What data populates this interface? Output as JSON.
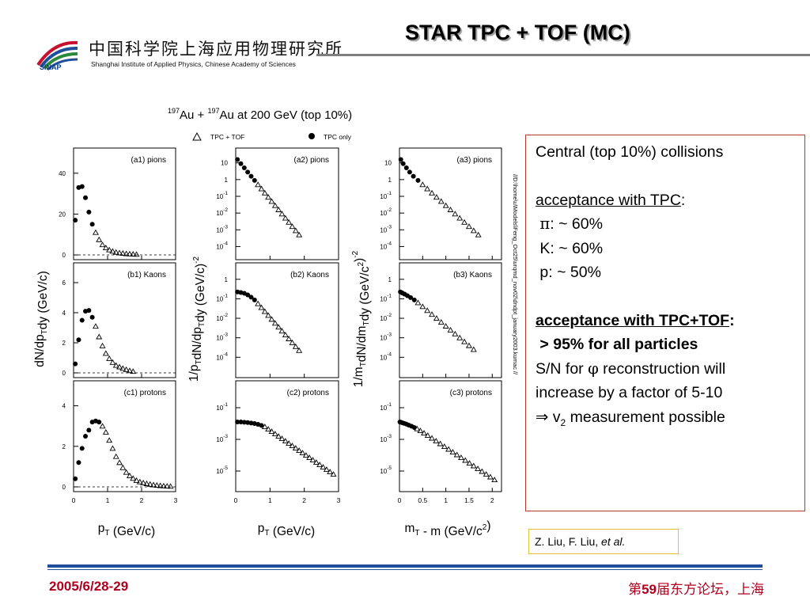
{
  "header": {
    "org_cn": "中国科学院上海应用物理研究所",
    "org_en": "Shanghai Institute of Applied Physics, Chinese Academy of Sciences",
    "logo_text": "SINAP",
    "title": "STAR TPC + TOF (MC)"
  },
  "info": {
    "l1": "Central (top 10%) collisions",
    "l2": "acceptance with TPC",
    "l2colon": ":",
    "l3sym": "π",
    "l3": ": ~ 60%",
    "l4": "K: ~ 60%",
    "l5": "p: ~ 50%",
    "l6": "acceptance with TPC+TOF",
    "l6colon": ":",
    "l7": "> 95% for all particles",
    "l8pre": "S/N for ",
    "l8sym": "φ",
    "l8post": " reconstruction will",
    "l9": "increase by a factor of 5-10",
    "l10sym": "⇒",
    "l10a": " v",
    "l10sub": "2",
    "l10b": " measurement possible"
  },
  "credit": {
    "authors": "Z. Liu, F. Liu, ",
    "etal": "et al."
  },
  "footer": {
    "date": "2005/6/28-29",
    "conf_pre": "第",
    "conf_num": "59",
    "conf_post": "届东方论坛，上海"
  },
  "colors": {
    "footer_red": "#b1001e",
    "footer_blue": "#1f4e9a",
    "box_border": "#b33a2a",
    "credit_border": "#e3c23a"
  },
  "chart_data": {
    "type": "scatter",
    "title_sup1": "197",
    "title_a": "Au + ",
    "title_sup2": "197",
    "title_b": "Au at 200 GeV (top 10%)",
    "legend": {
      "open": "TPC + TOF",
      "closed": "TPC only",
      "placement": "top"
    },
    "side_text": "//D:\\home\\u\\Models\\Feng_Oct25\\urqmd_nov02\\dndpt_january2003.kumac //",
    "columns": [
      {
        "ylabel": "dN/dp_T dy (GeV/c)",
        "xlabel": "p_T (GeV/c)",
        "xticks": [
          "0",
          "1",
          "2",
          "3"
        ],
        "xlim": [
          0,
          3
        ]
      },
      {
        "ylabel": "1/p_T dN/dp_T dy (GeV/c)^-2",
        "xlabel": "p_T (GeV/c)",
        "xticks": [
          "0",
          "1",
          "2",
          "3"
        ],
        "xlim": [
          0,
          3
        ]
      },
      {
        "ylabel": "1/m_T dN/dm_T dy (GeV/c^2)^-2",
        "xlabel": "m_T - m (GeV/c^2)",
        "xticks": [
          "0",
          "0.5",
          "1",
          "1.5",
          "2"
        ],
        "xlim": [
          0,
          2.2
        ]
      }
    ],
    "panels": [
      {
        "label": "(a1) pions",
        "yticks": [
          "0",
          "20",
          "40"
        ],
        "ylim": [
          0,
          50
        ],
        "log": false,
        "closed": [
          [
            0.05,
            17
          ],
          [
            0.15,
            33
          ],
          [
            0.25,
            33.5
          ],
          [
            0.35,
            28
          ],
          [
            0.45,
            21
          ],
          [
            0.55,
            15
          ]
        ],
        "open": [
          [
            0.65,
            11
          ],
          [
            0.75,
            7.5
          ],
          [
            0.85,
            5
          ],
          [
            0.95,
            3.5
          ],
          [
            1.05,
            2.5
          ],
          [
            1.15,
            1.8
          ],
          [
            1.25,
            1.3
          ],
          [
            1.35,
            1.0
          ],
          [
            1.45,
            0.8
          ],
          [
            1.55,
            0.6
          ],
          [
            1.65,
            0.5
          ],
          [
            1.75,
            0.4
          ],
          [
            1.85,
            0.3
          ]
        ]
      },
      {
        "label": "(a2) pions",
        "yticks": [
          "10",
          "1",
          "10^-1",
          "10^-2",
          "10^-3",
          "10^-4"
        ],
        "ylim": [
          -4.5,
          1.6
        ],
        "log": true,
        "closed": [
          [
            0.05,
            1.2
          ],
          [
            0.15,
            0.95
          ],
          [
            0.25,
            0.7
          ],
          [
            0.35,
            0.45
          ],
          [
            0.45,
            0.2
          ],
          [
            0.55,
            -0.05
          ]
        ],
        "open": [
          [
            0.65,
            -0.3
          ],
          [
            0.75,
            -0.55
          ],
          [
            0.85,
            -0.8
          ],
          [
            0.95,
            -1.05
          ],
          [
            1.05,
            -1.3
          ],
          [
            1.15,
            -1.55
          ],
          [
            1.25,
            -1.8
          ],
          [
            1.35,
            -2.05
          ],
          [
            1.45,
            -2.3
          ],
          [
            1.55,
            -2.55
          ],
          [
            1.65,
            -2.8
          ],
          [
            1.75,
            -3.05
          ],
          [
            1.85,
            -3.3
          ]
        ]
      },
      {
        "label": "(a3) pions",
        "yticks": [
          "10",
          "1",
          "10^-1",
          "10^-2",
          "10^-3",
          "10^-4"
        ],
        "ylim": [
          -4.5,
          1.6
        ],
        "log": true,
        "closed": [
          [
            0.03,
            1.2
          ],
          [
            0.08,
            0.95
          ],
          [
            0.15,
            0.7
          ],
          [
            0.22,
            0.45
          ],
          [
            0.3,
            0.2
          ],
          [
            0.4,
            -0.05
          ]
        ],
        "open": [
          [
            0.5,
            -0.3
          ],
          [
            0.6,
            -0.55
          ],
          [
            0.7,
            -0.8
          ],
          [
            0.8,
            -1.05
          ],
          [
            0.9,
            -1.3
          ],
          [
            1.0,
            -1.55
          ],
          [
            1.1,
            -1.8
          ],
          [
            1.2,
            -2.05
          ],
          [
            1.3,
            -2.3
          ],
          [
            1.4,
            -2.55
          ],
          [
            1.5,
            -2.8
          ],
          [
            1.6,
            -3.05
          ],
          [
            1.7,
            -3.3
          ]
        ]
      },
      {
        "label": "(b1) Kaons",
        "yticks": [
          "0",
          "2",
          "4",
          "6"
        ],
        "ylim": [
          0,
          7
        ],
        "log": false,
        "closed": [
          [
            0.05,
            0.6
          ],
          [
            0.15,
            2.2
          ],
          [
            0.25,
            3.5
          ],
          [
            0.35,
            4.1
          ],
          [
            0.45,
            4.15
          ],
          [
            0.55,
            3.7
          ]
        ],
        "open": [
          [
            0.65,
            3.1
          ],
          [
            0.75,
            2.4
          ],
          [
            0.85,
            1.8
          ],
          [
            0.95,
            1.3
          ],
          [
            1.05,
            0.95
          ],
          [
            1.15,
            0.7
          ],
          [
            1.25,
            0.5
          ],
          [
            1.35,
            0.4
          ],
          [
            1.45,
            0.3
          ],
          [
            1.55,
            0.22
          ],
          [
            1.65,
            0.15
          ],
          [
            1.75,
            0.1
          ]
        ]
      },
      {
        "label": "(b2) Kaons",
        "yticks": [
          "1",
          "10^-1",
          "10^-2",
          "10^-3",
          "10^-4"
        ],
        "ylim": [
          -4.8,
          0.6
        ],
        "log": true,
        "closed": [
          [
            0.05,
            -0.65
          ],
          [
            0.15,
            -0.68
          ],
          [
            0.25,
            -0.72
          ],
          [
            0.35,
            -0.8
          ],
          [
            0.45,
            -0.92
          ],
          [
            0.55,
            -1.06
          ]
        ],
        "open": [
          [
            0.65,
            -1.25
          ],
          [
            0.75,
            -1.45
          ],
          [
            0.85,
            -1.65
          ],
          [
            0.95,
            -1.85
          ],
          [
            1.05,
            -2.05
          ],
          [
            1.15,
            -2.25
          ],
          [
            1.25,
            -2.45
          ],
          [
            1.35,
            -2.65
          ],
          [
            1.45,
            -2.85
          ],
          [
            1.55,
            -3.05
          ],
          [
            1.65,
            -3.25
          ],
          [
            1.75,
            -3.45
          ],
          [
            1.85,
            -3.65
          ]
        ]
      },
      {
        "label": "(b3) Kaons",
        "yticks": [
          "1",
          "10^-1",
          "10^-2",
          "10^-3",
          "10^-4"
        ],
        "ylim": [
          -4.8,
          0.6
        ],
        "log": true,
        "closed": [
          [
            0.02,
            -0.65
          ],
          [
            0.06,
            -0.7
          ],
          [
            0.11,
            -0.76
          ],
          [
            0.17,
            -0.84
          ],
          [
            0.24,
            -0.94
          ],
          [
            0.32,
            -1.06
          ]
        ],
        "open": [
          [
            0.4,
            -1.2
          ],
          [
            0.5,
            -1.4
          ],
          [
            0.6,
            -1.6
          ],
          [
            0.7,
            -1.8
          ],
          [
            0.8,
            -2.0
          ],
          [
            0.9,
            -2.2
          ],
          [
            1.0,
            -2.4
          ],
          [
            1.1,
            -2.6
          ],
          [
            1.2,
            -2.8
          ],
          [
            1.3,
            -3.0
          ],
          [
            1.4,
            -3.2
          ],
          [
            1.5,
            -3.4
          ],
          [
            1.6,
            -3.6
          ]
        ]
      },
      {
        "label": "(c1) protons",
        "yticks": [
          "0",
          "2",
          "4"
        ],
        "ylim": [
          0,
          5
        ],
        "log": false,
        "closed": [
          [
            0.05,
            0.4
          ],
          [
            0.15,
            1.2
          ],
          [
            0.25,
            1.9
          ],
          [
            0.35,
            2.5
          ],
          [
            0.45,
            2.8
          ],
          [
            0.55,
            3.2
          ],
          [
            0.65,
            3.25
          ],
          [
            0.75,
            3.2
          ]
        ],
        "open": [
          [
            0.85,
            3.0
          ],
          [
            0.95,
            2.7
          ],
          [
            1.05,
            2.3
          ],
          [
            1.15,
            1.9
          ],
          [
            1.25,
            1.5
          ],
          [
            1.35,
            1.2
          ],
          [
            1.45,
            0.95
          ],
          [
            1.55,
            0.72
          ],
          [
            1.65,
            0.55
          ],
          [
            1.75,
            0.42
          ],
          [
            1.85,
            0.32
          ],
          [
            1.95,
            0.25
          ],
          [
            2.05,
            0.2
          ],
          [
            2.15,
            0.16
          ],
          [
            2.25,
            0.13
          ],
          [
            2.35,
            0.1
          ],
          [
            2.45,
            0.08
          ],
          [
            2.55,
            0.06
          ],
          [
            2.65,
            0.05
          ],
          [
            2.75,
            0.04
          ],
          [
            2.85,
            0.03
          ]
        ]
      },
      {
        "label": "(c2) protons",
        "yticks": [
          "10^-1",
          "10^-3",
          "10^-5"
        ],
        "ylim": [
          -6,
          0.4
        ],
        "log": true,
        "closed": [
          [
            0.05,
            -1.9
          ],
          [
            0.15,
            -1.9
          ],
          [
            0.25,
            -1.92
          ],
          [
            0.35,
            -1.94
          ],
          [
            0.45,
            -1.97
          ],
          [
            0.55,
            -2.0
          ],
          [
            0.65,
            -2.05
          ],
          [
            0.75,
            -2.12
          ]
        ],
        "open": [
          [
            0.85,
            -2.2
          ],
          [
            0.95,
            -2.35
          ],
          [
            1.05,
            -2.5
          ],
          [
            1.15,
            -2.65
          ],
          [
            1.25,
            -2.8
          ],
          [
            1.35,
            -2.95
          ],
          [
            1.45,
            -3.1
          ],
          [
            1.55,
            -3.25
          ],
          [
            1.65,
            -3.4
          ],
          [
            1.75,
            -3.55
          ],
          [
            1.85,
            -3.7
          ],
          [
            1.95,
            -3.85
          ],
          [
            2.05,
            -4.0
          ],
          [
            2.15,
            -4.15
          ],
          [
            2.25,
            -4.3
          ],
          [
            2.35,
            -4.45
          ],
          [
            2.45,
            -4.6
          ],
          [
            2.55,
            -4.75
          ],
          [
            2.65,
            -4.9
          ],
          [
            2.75,
            -5.05
          ],
          [
            2.85,
            -5.2
          ]
        ]
      },
      {
        "label": "(c3) protons",
        "yticks": [
          "10^-1",
          "10^-3",
          "10^-5"
        ],
        "ylim": [
          -6,
          0.4
        ],
        "log": true,
        "closed": [
          [
            0.01,
            -1.9
          ],
          [
            0.03,
            -1.92
          ],
          [
            0.06,
            -1.95
          ],
          [
            0.1,
            -1.99
          ],
          [
            0.15,
            -2.04
          ],
          [
            0.2,
            -2.1
          ],
          [
            0.26,
            -2.17
          ],
          [
            0.32,
            -2.25
          ]
        ],
        "open": [
          [
            0.38,
            -2.33
          ],
          [
            0.45,
            -2.45
          ],
          [
            0.53,
            -2.6
          ],
          [
            0.61,
            -2.75
          ],
          [
            0.7,
            -2.92
          ],
          [
            0.79,
            -3.1
          ],
          [
            0.88,
            -3.27
          ],
          [
            0.97,
            -3.45
          ],
          [
            1.06,
            -3.62
          ],
          [
            1.15,
            -3.8
          ],
          [
            1.24,
            -3.97
          ],
          [
            1.33,
            -4.15
          ],
          [
            1.42,
            -4.32
          ],
          [
            1.51,
            -4.5
          ],
          [
            1.6,
            -4.67
          ],
          [
            1.69,
            -4.85
          ],
          [
            1.78,
            -5.02
          ],
          [
            1.87,
            -5.2
          ],
          [
            1.96,
            -5.37
          ],
          [
            2.05,
            -5.55
          ]
        ]
      }
    ]
  }
}
